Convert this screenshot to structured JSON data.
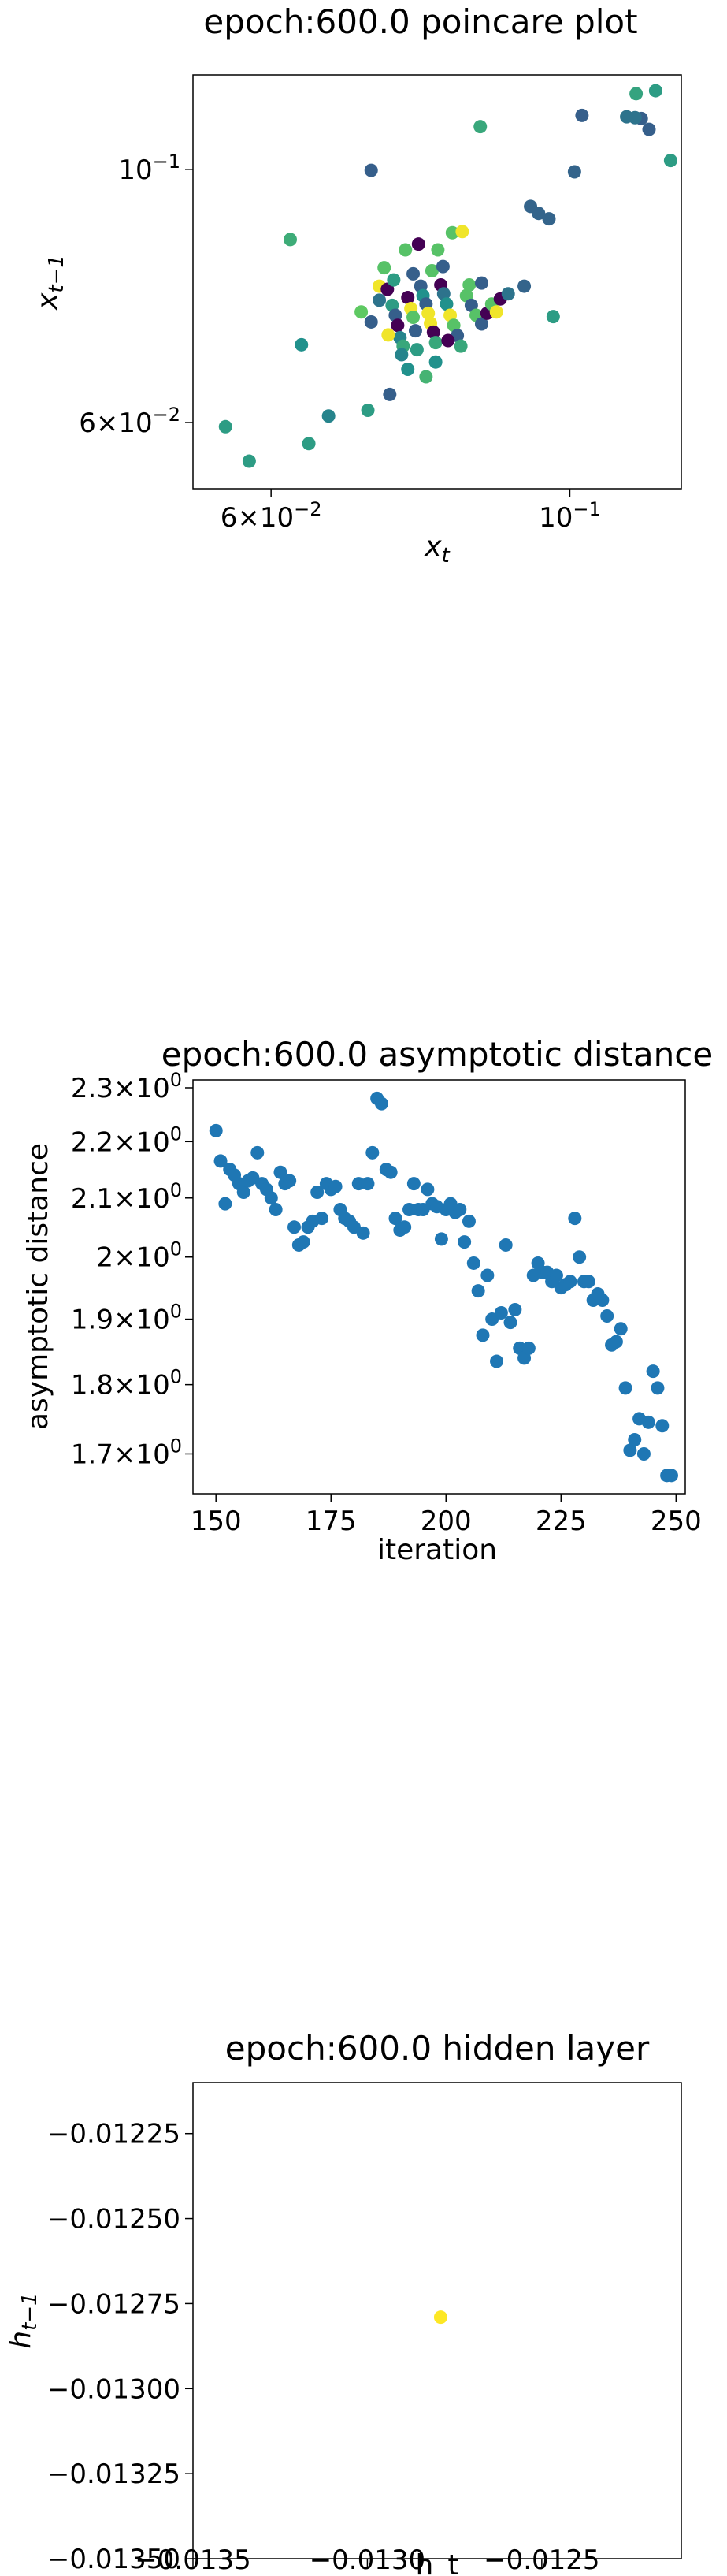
{
  "chart_data": [
    {
      "type": "scatter",
      "title": "epoch:600.0 poincare plot",
      "xlabel": "x_t",
      "ylabel": "x_{t-1}",
      "xscale": "log",
      "yscale": "log",
      "xlim": [
        0.0525,
        0.121
      ],
      "ylim": [
        0.0525,
        0.121
      ],
      "xticks": [
        {
          "value": 0.06,
          "base": "6×10",
          "exp": "−2"
        },
        {
          "value": 0.1,
          "base": "10",
          "exp": "−1"
        }
      ],
      "yticks": [
        {
          "value": 0.06,
          "base": "6×10",
          "exp": "−2"
        },
        {
          "value": 0.1,
          "base": "10",
          "exp": "−1"
        }
      ],
      "colormap": "viridis",
      "grid": false,
      "points": [
        {
          "x": 0.1158,
          "y": 0.1172,
          "c": 0.55
        },
        {
          "x": 0.1145,
          "y": 0.1084,
          "c": 0.3
        },
        {
          "x": 0.113,
          "y": 0.1108,
          "c": 0.3
        },
        {
          "x": 0.1118,
          "y": 0.111,
          "c": 0.38
        },
        {
          "x": 0.1102,
          "y": 0.1112,
          "c": 0.38
        },
        {
          "x": 0.112,
          "y": 0.1165,
          "c": 0.58
        },
        {
          "x": 0.1188,
          "y": 0.1018,
          "c": 0.55
        },
        {
          "x": 0.1021,
          "y": 0.1115,
          "c": 0.3
        },
        {
          "x": 0.1008,
          "y": 0.0995,
          "c": 0.32
        },
        {
          "x": 0.0965,
          "y": 0.0905,
          "c": 0.32
        },
        {
          "x": 0.0935,
          "y": 0.0928,
          "c": 0.32
        },
        {
          "x": 0.0948,
          "y": 0.0915,
          "c": 0.32
        },
        {
          "x": 0.0925,
          "y": 0.079,
          "c": 0.32
        },
        {
          "x": 0.0972,
          "y": 0.0743,
          "c": 0.55
        },
        {
          "x": 0.0858,
          "y": 0.109,
          "c": 0.6
        },
        {
          "x": 0.0712,
          "y": 0.0998,
          "c": 0.3
        },
        {
          "x": 0.062,
          "y": 0.0868,
          "c": 0.62
        },
        {
          "x": 0.0555,
          "y": 0.0595,
          "c": 0.55
        },
        {
          "x": 0.0578,
          "y": 0.0555,
          "c": 0.55
        },
        {
          "x": 0.0632,
          "y": 0.0702,
          "c": 0.5
        },
        {
          "x": 0.064,
          "y": 0.0575,
          "c": 0.55
        },
        {
          "x": 0.0662,
          "y": 0.0608,
          "c": 0.45
        },
        {
          "x": 0.0708,
          "y": 0.0615,
          "c": 0.55
        },
        {
          "x": 0.0735,
          "y": 0.0635,
          "c": 0.3
        },
        {
          "x": 0.0758,
          "y": 0.0668,
          "c": 0.5
        },
        {
          "x": 0.0782,
          "y": 0.0658,
          "c": 0.65
        },
        {
          "x": 0.0818,
          "y": 0.088,
          "c": 0.72
        },
        {
          "x": 0.0832,
          "y": 0.0882,
          "c": 0.98
        },
        {
          "x": 0.07,
          "y": 0.075,
          "c": 0.75
        },
        {
          "x": 0.0712,
          "y": 0.0735,
          "c": 0.3
        },
        {
          "x": 0.0722,
          "y": 0.079,
          "c": 0.98
        },
        {
          "x": 0.0728,
          "y": 0.082,
          "c": 0.72
        },
        {
          "x": 0.0732,
          "y": 0.0785,
          "c": 0.0
        },
        {
          "x": 0.0738,
          "y": 0.076,
          "c": 0.55
        },
        {
          "x": 0.0742,
          "y": 0.0745,
          "c": 0.3
        },
        {
          "x": 0.0745,
          "y": 0.073,
          "c": 0.0
        },
        {
          "x": 0.0748,
          "y": 0.0712,
          "c": 0.45
        },
        {
          "x": 0.0752,
          "y": 0.07,
          "c": 0.6
        },
        {
          "x": 0.0755,
          "y": 0.085,
          "c": 0.72
        },
        {
          "x": 0.0758,
          "y": 0.0772,
          "c": 0.0
        },
        {
          "x": 0.0762,
          "y": 0.0755,
          "c": 0.98
        },
        {
          "x": 0.0765,
          "y": 0.0742,
          "c": 0.72
        },
        {
          "x": 0.0768,
          "y": 0.0722,
          "c": 0.3
        },
        {
          "x": 0.0772,
          "y": 0.086,
          "c": 0.0
        },
        {
          "x": 0.0775,
          "y": 0.079,
          "c": 0.3
        },
        {
          "x": 0.0778,
          "y": 0.0775,
          "c": 0.5
        },
        {
          "x": 0.0782,
          "y": 0.0762,
          "c": 0.3
        },
        {
          "x": 0.0785,
          "y": 0.0748,
          "c": 0.98
        },
        {
          "x": 0.0788,
          "y": 0.0733,
          "c": 0.98
        },
        {
          "x": 0.0792,
          "y": 0.072,
          "c": 0.0
        },
        {
          "x": 0.0795,
          "y": 0.0705,
          "c": 0.6
        },
        {
          "x": 0.0798,
          "y": 0.085,
          "c": 0.72
        },
        {
          "x": 0.0802,
          "y": 0.0792,
          "c": 0.0
        },
        {
          "x": 0.0806,
          "y": 0.0778,
          "c": 0.38
        },
        {
          "x": 0.081,
          "y": 0.0762,
          "c": 0.5
        },
        {
          "x": 0.0815,
          "y": 0.0745,
          "c": 0.98
        },
        {
          "x": 0.082,
          "y": 0.073,
          "c": 0.72
        },
        {
          "x": 0.0825,
          "y": 0.0715,
          "c": 0.3
        },
        {
          "x": 0.083,
          "y": 0.07,
          "c": 0.6
        },
        {
          "x": 0.0838,
          "y": 0.0775,
          "c": 0.72
        },
        {
          "x": 0.0845,
          "y": 0.076,
          "c": 0.3
        },
        {
          "x": 0.0852,
          "y": 0.0745,
          "c": 0.72
        },
        {
          "x": 0.086,
          "y": 0.0732,
          "c": 0.3
        },
        {
          "x": 0.0868,
          "y": 0.0748,
          "c": 0.0
        },
        {
          "x": 0.0875,
          "y": 0.0762,
          "c": 0.72
        },
        {
          "x": 0.0882,
          "y": 0.075,
          "c": 0.98
        },
        {
          "x": 0.0888,
          "y": 0.077,
          "c": 0.0
        },
        {
          "x": 0.074,
          "y": 0.08,
          "c": 0.55
        },
        {
          "x": 0.0765,
          "y": 0.081,
          "c": 0.3
        },
        {
          "x": 0.079,
          "y": 0.0815,
          "c": 0.72
        },
        {
          "x": 0.0805,
          "y": 0.0822,
          "c": 0.3
        },
        {
          "x": 0.0733,
          "y": 0.0716,
          "c": 0.98
        },
        {
          "x": 0.075,
          "y": 0.0688,
          "c": 0.45
        },
        {
          "x": 0.077,
          "y": 0.0695,
          "c": 0.55
        },
        {
          "x": 0.0795,
          "y": 0.0678,
          "c": 0.5
        },
        {
          "x": 0.0812,
          "y": 0.0708,
          "c": 0.0
        },
        {
          "x": 0.0842,
          "y": 0.0792,
          "c": 0.72
        },
        {
          "x": 0.0722,
          "y": 0.0768,
          "c": 0.38
        },
        {
          "x": 0.086,
          "y": 0.0795,
          "c": 0.3
        },
        {
          "x": 0.09,
          "y": 0.0778,
          "c": 0.38
        }
      ]
    },
    {
      "type": "scatter",
      "title": "epoch:600.0 asymptotic distance",
      "xlabel": "iteration",
      "ylabel": "asymptotic distance",
      "yscale": "log",
      "xlim": [
        145,
        252
      ],
      "ylim": [
        1.645,
        2.315
      ],
      "xticks": [
        150,
        175,
        200,
        225,
        250
      ],
      "yticks": [
        {
          "value": 1.7,
          "mant": "1.7"
        },
        {
          "value": 1.8,
          "mant": "1.8"
        },
        {
          "value": 1.9,
          "mant": "1.9"
        },
        {
          "value": 2.0,
          "mant": "2"
        },
        {
          "value": 2.1,
          "mant": "2.1"
        },
        {
          "value": 2.2,
          "mant": "2.2"
        },
        {
          "value": 2.3,
          "mant": "2.3"
        }
      ],
      "ytick_suffix_base": "×10",
      "ytick_suffix_exp": "0",
      "color": "#1f77b4",
      "grid": false,
      "x": [
        150,
        151,
        152,
        153,
        154,
        155,
        156,
        157,
        158,
        159,
        160,
        161,
        162,
        163,
        164,
        165,
        166,
        167,
        168,
        169,
        170,
        171,
        172,
        173,
        174,
        175,
        176,
        177,
        178,
        179,
        180,
        181,
        182,
        183,
        184,
        185,
        186,
        187,
        188,
        189,
        190,
        191,
        192,
        193,
        194,
        195,
        196,
        197,
        198,
        199,
        200,
        201,
        202,
        203,
        204,
        205,
        206,
        207,
        208,
        209,
        210,
        211,
        212,
        213,
        214,
        215,
        216,
        217,
        218,
        219,
        220,
        221,
        222,
        223,
        224,
        225,
        226,
        227,
        228,
        229,
        230,
        231,
        232,
        233,
        234,
        235,
        236,
        237,
        238,
        239,
        240,
        241,
        242,
        243,
        244,
        245,
        246,
        247,
        248,
        249
      ],
      "y": [
        2.22,
        2.165,
        2.09,
        2.15,
        2.14,
        2.125,
        2.11,
        2.13,
        2.135,
        2.18,
        2.125,
        2.115,
        2.1,
        2.08,
        2.145,
        2.125,
        2.13,
        2.05,
        2.02,
        2.025,
        2.05,
        2.06,
        2.11,
        2.065,
        2.125,
        2.115,
        2.12,
        2.08,
        2.065,
        2.06,
        2.05,
        2.125,
        2.04,
        2.125,
        2.18,
        2.28,
        2.27,
        2.15,
        2.145,
        2.065,
        2.045,
        2.05,
        2.08,
        2.125,
        2.08,
        2.08,
        2.115,
        2.09,
        2.085,
        2.03,
        2.08,
        2.09,
        2.075,
        2.08,
        2.025,
        2.06,
        1.99,
        1.945,
        1.875,
        1.97,
        1.9,
        1.835,
        1.91,
        2.02,
        1.895,
        1.915,
        1.855,
        1.84,
        1.855,
        1.97,
        1.99,
        1.975,
        1.975,
        1.96,
        1.97,
        1.95,
        1.955,
        1.96,
        2.065,
        2.0,
        1.96,
        1.96,
        1.93,
        1.94,
        1.93,
        1.905,
        1.86,
        1.865,
        1.885,
        1.795,
        1.705,
        1.72,
        1.75,
        1.7,
        1.745,
        1.82,
        1.795,
        1.74,
        1.67,
        1.67
      ],
      "ylabel_tick_font": "34px"
    },
    {
      "type": "scatter",
      "title": "epoch:600.0 hidden layer",
      "xlabel": "h_t",
      "ylabel": "h_{t-1}",
      "xlim": [
        -0.0135,
        -0.0121
      ],
      "ylim": [
        -0.0135,
        -0.0121
      ],
      "xticks": [
        {
          "value": -0.0135,
          "label": "−0.0135"
        },
        {
          "value": -0.013,
          "label": "−0.0130"
        },
        {
          "value": -0.0125,
          "label": "−0.0125"
        }
      ],
      "yticks": [
        {
          "value": -0.01225,
          "label": "−0.01225"
        },
        {
          "value": -0.0125,
          "label": "−0.01250"
        },
        {
          "value": -0.01275,
          "label": "−0.01275"
        },
        {
          "value": -0.013,
          "label": "−0.01300"
        },
        {
          "value": -0.01325,
          "label": "−0.01325"
        },
        {
          "value": -0.0135,
          "label": "−0.01350"
        }
      ],
      "points": [
        {
          "x": -0.01279,
          "y": -0.01279,
          "color": "#fde725"
        }
      ],
      "grid": false
    }
  ]
}
